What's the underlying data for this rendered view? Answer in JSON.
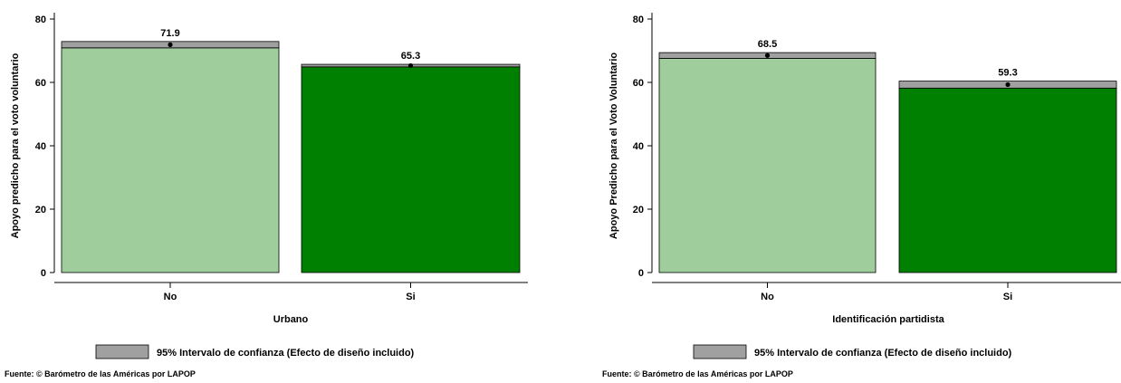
{
  "colors": {
    "bar_light": "#9fce9c",
    "bar_dark": "#008000",
    "ci_fill": "#a0a0a0",
    "stroke": "#000000"
  },
  "chart_data": [
    {
      "type": "bar",
      "categories": [
        "No",
        "Si"
      ],
      "values": [
        71.9,
        65.3
      ],
      "ci_low": [
        70.9,
        64.9
      ],
      "ci_high": [
        72.9,
        65.7
      ],
      "data_labels": [
        "71.9",
        "65.3"
      ],
      "xlabel": "Urbano",
      "ylabel": "Apoyo predicho para el voto voluntario",
      "yticks": [
        0,
        20,
        40,
        60,
        80
      ],
      "ylim": [
        0,
        80
      ],
      "legend": "95% Intervalo de confianza (Efecto de diseño incluido)",
      "legend_position": "bottom",
      "source": "Fuente: © Barómetro de las Américas por LAPOP"
    },
    {
      "type": "bar",
      "categories": [
        "No",
        "Si"
      ],
      "values": [
        68.5,
        59.3
      ],
      "ci_low": [
        67.6,
        58.2
      ],
      "ci_high": [
        69.4,
        60.4
      ],
      "data_labels": [
        "68.5",
        "59.3"
      ],
      "xlabel": "Identificación partidista",
      "ylabel": "Apoyo Predicho para el Voto Voluntario",
      "yticks": [
        0,
        20,
        40,
        60,
        80
      ],
      "ylim": [
        0,
        80
      ],
      "legend": "95% Intervalo de confianza (Efecto de diseño incluido)",
      "legend_position": "bottom",
      "source": "Fuente: © Barómetro de las Américas por LAPOP"
    }
  ]
}
